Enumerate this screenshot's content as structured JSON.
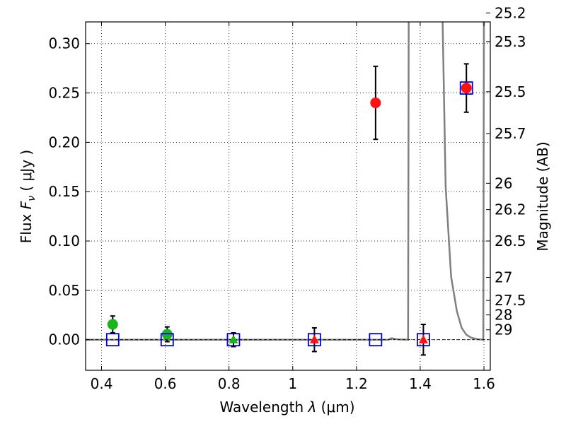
{
  "chart_data": {
    "type": "scatter",
    "xlabel_prefix": "Wavelength  ",
    "xlabel_symbol": "λ",
    "xlabel_unit": " (μm)",
    "ylabel_prefix": "Flux  ",
    "ylabel_symbol": "F",
    "ylabel_subscript": "ν",
    "ylabel_unit": "  ( μJy )",
    "y2label": "Magnitude (AB)",
    "xlim": [
      0.35,
      1.62
    ],
    "ylim": [
      -0.031,
      0.322
    ],
    "grid": true,
    "x_ticks": [
      {
        "value": 0.4,
        "label": "0.4"
      },
      {
        "value": 0.6,
        "label": "0.6"
      },
      {
        "value": 0.8,
        "label": "0.8"
      },
      {
        "value": 1.0,
        "label": "1"
      },
      {
        "value": 1.2,
        "label": "1.2"
      },
      {
        "value": 1.4,
        "label": "1.4"
      },
      {
        "value": 1.6,
        "label": "1.6"
      }
    ],
    "y_ticks": [
      {
        "value": 0.0,
        "label": "0.00"
      },
      {
        "value": 0.05,
        "label": "0.05"
      },
      {
        "value": 0.1,
        "label": "0.10"
      },
      {
        "value": 0.15,
        "label": "0.15"
      },
      {
        "value": 0.2,
        "label": "0.20"
      },
      {
        "value": 0.25,
        "label": "0.25"
      },
      {
        "value": 0.3,
        "label": "0.30"
      }
    ],
    "mag_ticks": [
      {
        "label": "25.2",
        "flux": 0.3311
      },
      {
        "label": "25.3",
        "flux": 0.302
      },
      {
        "label": "25.5",
        "flux": 0.2512
      },
      {
        "label": "25.7",
        "flux": 0.2089
      },
      {
        "label": "26",
        "flux": 0.1585
      },
      {
        "label": "26.2",
        "flux": 0.1318
      },
      {
        "label": "26.5",
        "flux": 0.1
      },
      {
        "label": "27",
        "flux": 0.0631
      },
      {
        "label": "27.5",
        "flux": 0.0398
      },
      {
        "label": "28",
        "flux": 0.0251
      },
      {
        "label": "29",
        "flux": 0.01
      }
    ],
    "series": [
      {
        "name": "green-detections",
        "marker": "circle",
        "color": "#18b618",
        "points": [
          {
            "x": 0.435,
            "y": 0.0155,
            "err": 0.0085
          },
          {
            "x": 0.606,
            "y": 0.0055,
            "err": 0.0075
          }
        ]
      },
      {
        "name": "green-upper-limits",
        "marker": "triangle",
        "color": "#18b618",
        "points": [
          {
            "x": 0.814,
            "y": 0.0,
            "err": 0.007
          }
        ]
      },
      {
        "name": "red-detections",
        "marker": "circle",
        "color": "#ff1111",
        "points": [
          {
            "x": 1.26,
            "y": 0.24,
            "err": 0.037
          },
          {
            "x": 1.545,
            "y": 0.255,
            "err": 0.0245
          }
        ]
      },
      {
        "name": "red-upper-limits",
        "marker": "triangle",
        "color": "#ff1111",
        "points": [
          {
            "x": 1.068,
            "y": 0.0,
            "err": 0.012
          },
          {
            "x": 1.41,
            "y": 0.0,
            "err": 0.0155
          }
        ]
      },
      {
        "name": "model-squares",
        "marker": "square",
        "color": "#0000dd",
        "points": [
          {
            "x": 0.435,
            "y": 0.0
          },
          {
            "x": 0.606,
            "y": 0.0
          },
          {
            "x": 0.814,
            "y": 0.0
          },
          {
            "x": 1.068,
            "y": 0.0
          },
          {
            "x": 1.26,
            "y": 0.0
          },
          {
            "x": 1.41,
            "y": 0.0
          },
          {
            "x": 1.545,
            "y": 0.255
          }
        ]
      },
      {
        "name": "model-spectrum",
        "marker": "line",
        "color": "#808080",
        "points": [
          {
            "x": 0.35,
            "y": 0.0
          },
          {
            "x": 1.3,
            "y": 0.0
          },
          {
            "x": 1.31,
            "y": 0.0015
          },
          {
            "x": 1.33,
            "y": 0.0003
          },
          {
            "x": 1.362,
            "y": 0.0
          },
          {
            "x": 1.364,
            "y": 0.33
          },
          {
            "x": 1.47,
            "y": 0.33
          },
          {
            "x": 1.48,
            "y": 0.155
          },
          {
            "x": 1.497,
            "y": 0.064
          },
          {
            "x": 1.515,
            "y": 0.029
          },
          {
            "x": 1.53,
            "y": 0.012
          },
          {
            "x": 1.545,
            "y": 0.005
          },
          {
            "x": 1.56,
            "y": 0.002
          },
          {
            "x": 1.58,
            "y": 0.0005
          },
          {
            "x": 1.598,
            "y": 0.0
          },
          {
            "x": 1.6,
            "y": 0.33
          }
        ]
      }
    ]
  }
}
